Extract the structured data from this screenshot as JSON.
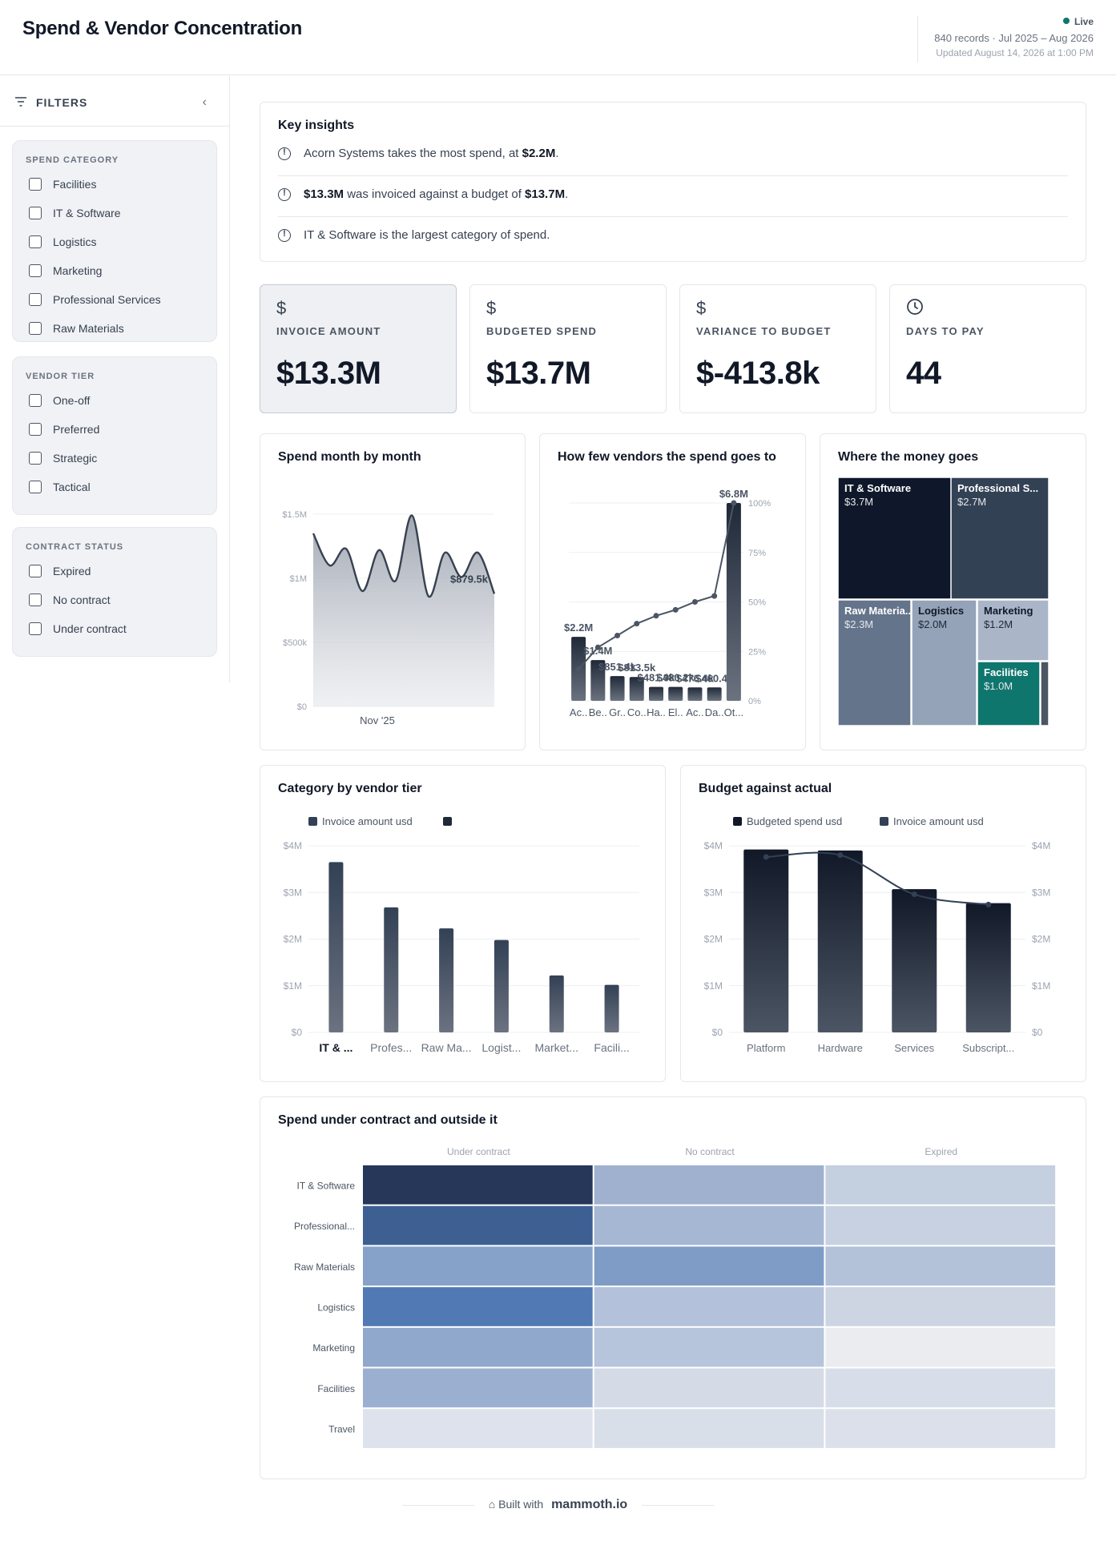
{
  "header": {
    "title": "Spend & Vendor Concentration",
    "live": "Live",
    "records": "840 records · Jul 2025 – Aug 2026",
    "updated": "Updated August 14, 2026 at 1:00 PM"
  },
  "sidebar": {
    "title": "FILTERS",
    "groups": [
      {
        "title": "SPEND CATEGORY",
        "items": [
          "Facilities",
          "IT & Software",
          "Logistics",
          "Marketing",
          "Professional Services",
          "Raw Materials"
        ]
      },
      {
        "title": "VENDOR TIER",
        "items": [
          "One-off",
          "Preferred",
          "Strategic",
          "Tactical"
        ]
      },
      {
        "title": "CONTRACT STATUS",
        "items": [
          "Expired",
          "No contract",
          "Under contract"
        ]
      }
    ]
  },
  "insights": {
    "title": "Key insights",
    "items": [
      {
        "pre": "Acorn Systems takes the most spend, at ",
        "b1": "$2.2M",
        "mid": ".",
        "b2": "",
        "post": ""
      },
      {
        "pre": "",
        "b1": "$13.3M",
        "mid": " was invoiced against a budget of ",
        "b2": "$13.7M",
        "post": "."
      },
      {
        "pre": "IT & Software is the largest category of spend.",
        "b1": "",
        "mid": "",
        "b2": "",
        "post": ""
      }
    ]
  },
  "kpis": [
    {
      "icon": "dollar-icon",
      "label": "INVOICE AMOUNT",
      "value": "$13.3M",
      "selected": true
    },
    {
      "icon": "dollar-icon",
      "label": "BUDGETED SPEND",
      "value": "$13.7M",
      "selected": false
    },
    {
      "icon": "dollar-icon",
      "label": "VARIANCE TO BUDGET",
      "value": "$-413.8k",
      "selected": false
    },
    {
      "icon": "clock-icon",
      "label": "DAYS TO PAY",
      "value": "44",
      "selected": false
    }
  ],
  "colors": {
    "dark": "#0f172a",
    "slate": "#334155",
    "teal": "#0f766e",
    "grid": "#e5e7eb"
  },
  "chart_data": [
    {
      "id": "spend-month",
      "type": "area",
      "title": "Spend month by month",
      "x_label_shown": "Nov '25",
      "y_ticks": [
        "$0",
        "$500k",
        "$1M",
        "$1.5M"
      ],
      "ylim": [
        0,
        1500000
      ],
      "values": [
        1350000,
        1100000,
        1230000,
        900000,
        1220000,
        980000,
        1490000,
        860000,
        1200000,
        1010000,
        1200000,
        879500
      ],
      "last_label": "$879.5k"
    },
    {
      "id": "vendor-pareto",
      "type": "bar",
      "title": "How few vendors the spend goes to",
      "categories": [
        "Ac..",
        "Be..",
        "Gr..",
        "Co..",
        "Ha..",
        "El..",
        "Ac..",
        "Da..",
        "Ot..."
      ],
      "values": [
        2.2,
        1.4,
        0.85,
        0.82,
        0.48,
        0.48,
        0.46,
        0.46,
        6.8
      ],
      "value_labels": [
        "$2.2M",
        "$1.4M",
        "$851.4k",
        "$813.5k",
        "$481.9k",
        "$480.2k",
        "$476.4k",
        "$460.4k",
        "$6.8M"
      ],
      "cumulative_pct": [
        16,
        27,
        33,
        39,
        43,
        46,
        50,
        53,
        100
      ],
      "right_ticks": [
        "0%",
        "25%",
        "50%",
        "75%",
        "100%"
      ],
      "ylim": [
        0,
        6.8
      ]
    },
    {
      "id": "treemap",
      "type": "treemap",
      "title": "Where the money goes",
      "items": [
        {
          "name": "IT & Software",
          "label": "IT & Software",
          "value": "$3.7M",
          "color": "#0f172a"
        },
        {
          "name": "Professional Services",
          "label": "Professional S...",
          "value": "$2.7M",
          "color": "#334155"
        },
        {
          "name": "Raw Materials",
          "label": "Raw Materia...",
          "value": "$2.3M",
          "color": "#64748b"
        },
        {
          "name": "Logistics",
          "label": "Logistics",
          "value": "$2.0M",
          "color": "#94a3b8"
        },
        {
          "name": "Marketing",
          "label": "Marketing",
          "value": "$1.2M",
          "color": "#aab6c8"
        },
        {
          "name": "Facilities",
          "label": "Facilities",
          "value": "$1.0M",
          "color": "#0f766e"
        },
        {
          "name": "Other",
          "label": "",
          "value": "",
          "color": "#4b5563"
        }
      ]
    },
    {
      "id": "category-tier",
      "type": "bar",
      "title": "Category by vendor tier",
      "legend": [
        "Invoice amount usd",
        ""
      ],
      "categories": [
        "IT & ...",
        "Profes...",
        "Raw Ma...",
        "Logist...",
        "Market...",
        "Facili..."
      ],
      "values": [
        3.65,
        2.68,
        2.23,
        1.98,
        1.22,
        1.02
      ],
      "y_ticks": [
        "$0",
        "$1M",
        "$2M",
        "$3M",
        "$4M"
      ],
      "ylim": [
        0,
        4
      ]
    },
    {
      "id": "budget-actual",
      "type": "bar",
      "title": "Budget against actual",
      "legend": [
        "Budgeted spend usd",
        "Invoice amount usd"
      ],
      "categories": [
        "Platform",
        "Hardware",
        "Services",
        "Subscript..."
      ],
      "series": [
        {
          "name": "Budgeted spend usd",
          "values": [
            3.92,
            3.9,
            3.07,
            2.77
          ]
        },
        {
          "name": "Invoice amount usd",
          "values": [
            3.76,
            3.8,
            2.96,
            2.74
          ]
        }
      ],
      "y_ticks": [
        "$0",
        "$1M",
        "$2M",
        "$3M",
        "$4M"
      ],
      "ylim": [
        0,
        4
      ]
    },
    {
      "id": "contract-heatmap",
      "type": "heatmap",
      "title": "Spend under contract and outside it",
      "columns": [
        "Under contract",
        "No contract",
        "Expired"
      ],
      "rows": [
        "IT & Software",
        "Professional...",
        "Raw Materials",
        "Logistics",
        "Marketing",
        "Facilities",
        "Travel"
      ],
      "cells": [
        [
          "#27375a",
          "#9fb1cf",
          "#c4cfdf"
        ],
        [
          "#3e5f92",
          "#a5b7d3",
          "#c7d1e1"
        ],
        [
          "#87a2c9",
          "#7e9cc6",
          "#b3c1d9"
        ],
        [
          "#5179b4",
          "#b3c2da",
          "#cdd5e3"
        ],
        [
          "#90a8cc",
          "#b6c4dc",
          "#eaecf0"
        ],
        [
          "#9bb0d1",
          "#d4dbe7",
          "#d8dee9"
        ],
        [
          "#dde2ec",
          "#d9dfe9",
          "#dbe0ea"
        ]
      ]
    }
  ],
  "footer": {
    "built": "Built with",
    "brand": "mammoth.io"
  }
}
